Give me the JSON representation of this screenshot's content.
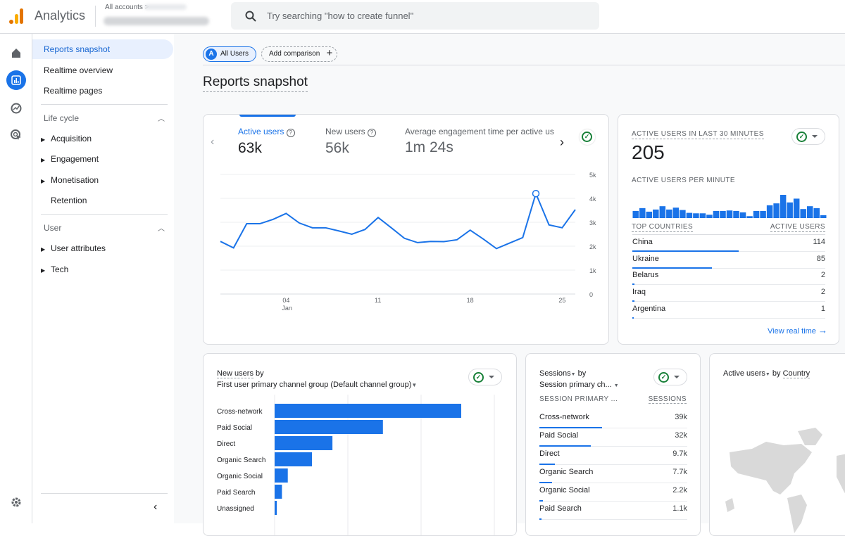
{
  "header": {
    "app_title": "Analytics",
    "breadcrumb": "All accounts",
    "search_placeholder": "Try searching \"how to create funnel\""
  },
  "rail": {
    "icons": [
      "home-icon",
      "reports-icon",
      "explore-icon",
      "advertising-icon",
      "settings-icon"
    ]
  },
  "nav": {
    "top_items": [
      {
        "label": "Reports snapshot",
        "active": true
      },
      {
        "label": "Realtime overview"
      },
      {
        "label": "Realtime pages"
      }
    ],
    "lifecycle": {
      "label": "Life cycle",
      "items": [
        {
          "label": "Acquisition",
          "expandable": true
        },
        {
          "label": "Engagement",
          "expandable": true
        },
        {
          "label": "Monetisation",
          "expandable": true
        },
        {
          "label": "Retention",
          "expandable": false
        }
      ]
    },
    "user": {
      "label": "User",
      "items": [
        {
          "label": "User attributes",
          "expandable": true
        },
        {
          "label": "Tech",
          "expandable": true
        }
      ]
    }
  },
  "filters": {
    "segment_badge": "A",
    "segment": "All Users",
    "add_comparison": "Add comparison"
  },
  "page_title": "Reports snapshot",
  "colors": {
    "accent": "#1a73e8",
    "success": "#188038"
  },
  "overview": {
    "metrics": [
      {
        "label": "Active users",
        "value": "63k",
        "selected": true
      },
      {
        "label": "New users",
        "value": "56k"
      },
      {
        "label": "Average engagement time per active us",
        "value": "1m 24s"
      }
    ],
    "chart_data": {
      "type": "line",
      "x_tick_labels": [
        "04",
        "11",
        "18",
        "25"
      ],
      "x_sub_label": "Jan",
      "y_tick_labels": [
        "0",
        "1k",
        "2k",
        "3k",
        "4k",
        "5k"
      ],
      "ylim": [
        0,
        5000
      ],
      "x": [
        "Dec 30",
        "Dec 31",
        "Jan 1",
        "Jan 2",
        "Jan 3",
        "Jan 4",
        "Jan 5",
        "Jan 6",
        "Jan 7",
        "Jan 8",
        "Jan 9",
        "Jan 10",
        "Jan 11",
        "Jan 12",
        "Jan 13",
        "Jan 14",
        "Jan 15",
        "Jan 16",
        "Jan 17",
        "Jan 18",
        "Jan 19",
        "Jan 20",
        "Jan 21",
        "Jan 22",
        "Jan 23",
        "Jan 24",
        "Jan 25",
        "Jan 26"
      ],
      "values": [
        2200,
        1930,
        2940,
        2940,
        3120,
        3370,
        2970,
        2770,
        2770,
        2640,
        2500,
        2700,
        3200,
        2770,
        2330,
        2150,
        2200,
        2190,
        2270,
        2670,
        2300,
        1900,
        2130,
        2360,
        4200,
        2890,
        2770,
        3530
      ],
      "highlight_index": 24,
      "grid": true
    }
  },
  "realtime": {
    "title": "Active users in last 30 minutes",
    "value": "205",
    "per_minute_label": "Active users per minute",
    "per_minute": [
      30,
      42,
      27,
      36,
      50,
      36,
      44,
      34,
      22,
      20,
      20,
      14,
      30,
      30,
      32,
      30,
      24,
      8,
      30,
      30,
      54,
      62,
      98,
      66,
      82,
      38,
      50,
      42,
      12
    ],
    "col_country": "Top countries",
    "col_users": "Active users",
    "countries": [
      {
        "name": "China",
        "value": "114",
        "n": 114
      },
      {
        "name": "Ukraine",
        "value": "85",
        "n": 85
      },
      {
        "name": "Belarus",
        "value": "2",
        "n": 2
      },
      {
        "name": "Iraq",
        "value": "2",
        "n": 2
      },
      {
        "name": "Argentina",
        "value": "1",
        "n": 1
      }
    ],
    "link": "View real time"
  },
  "new_users": {
    "title_metric": "New users",
    "title_by": "by",
    "dimension": "First user primary channel group (Default channel group)",
    "chart_data": {
      "type": "bar",
      "orientation": "horizontal",
      "categories": [
        "Cross-network",
        "Paid Social",
        "Direct",
        "Organic Search",
        "Organic Social",
        "Paid Search",
        "Unassigned"
      ],
      "values": [
        2.55,
        1.48,
        0.79,
        0.51,
        0.18,
        0.1,
        0.03
      ],
      "grid": true
    }
  },
  "sessions": {
    "title_metric": "Sessions",
    "title_by": "by",
    "dimension": "Session primary ch...",
    "col_dim": "Session primary ...",
    "col_val": "Sessions",
    "rows": [
      {
        "label": "Cross-network",
        "value": "39k",
        "n": 39000
      },
      {
        "label": "Paid Social",
        "value": "32k",
        "n": 32000
      },
      {
        "label": "Direct",
        "value": "9.7k",
        "n": 9700
      },
      {
        "label": "Organic Search",
        "value": "7.7k",
        "n": 7700
      },
      {
        "label": "Organic Social",
        "value": "2.2k",
        "n": 2200
      },
      {
        "label": "Paid Search",
        "value": "1.1k",
        "n": 1100
      }
    ]
  },
  "country_map": {
    "title_metric": "Active users",
    "title_by": "by",
    "dimension": "Country"
  }
}
